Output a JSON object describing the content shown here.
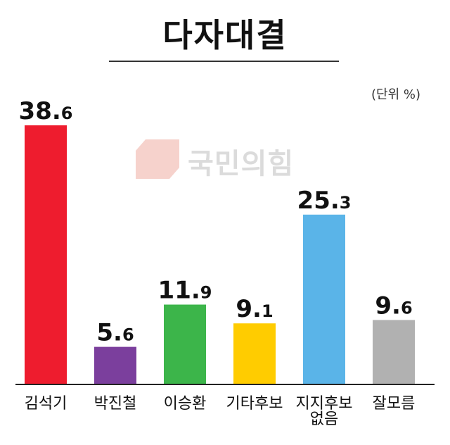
{
  "title": "다자대결",
  "unit_label": "(단위 %)",
  "watermark_text": "국민의힘",
  "chart_data": {
    "type": "bar",
    "title": "다자대결",
    "categories": [
      "김석기",
      "박진철",
      "이승환",
      "기타후보",
      "지지후보 없음",
      "잘모름"
    ],
    "category_lines": [
      [
        "김석기"
      ],
      [
        "박진철"
      ],
      [
        "이승환"
      ],
      [
        "기타후보"
      ],
      [
        "지지후보",
        "없음"
      ],
      [
        "잘모름"
      ]
    ],
    "values": [
      38.6,
      5.6,
      11.9,
      9.1,
      25.3,
      9.6
    ],
    "value_labels": [
      [
        "38.",
        "6"
      ],
      [
        "5.",
        "6"
      ],
      [
        "11.",
        "9"
      ],
      [
        "9.",
        "1"
      ],
      [
        "25.",
        "3"
      ],
      [
        "9.",
        "6"
      ]
    ],
    "colors": [
      "#ee1c2e",
      "#7b3f9d",
      "#3cb54a",
      "#ffcc00",
      "#5ab4e8",
      "#b1b1b1"
    ],
    "xlabel": "",
    "ylabel": "",
    "ylim": [
      0,
      38.6
    ],
    "grid": false,
    "legend": "none"
  }
}
